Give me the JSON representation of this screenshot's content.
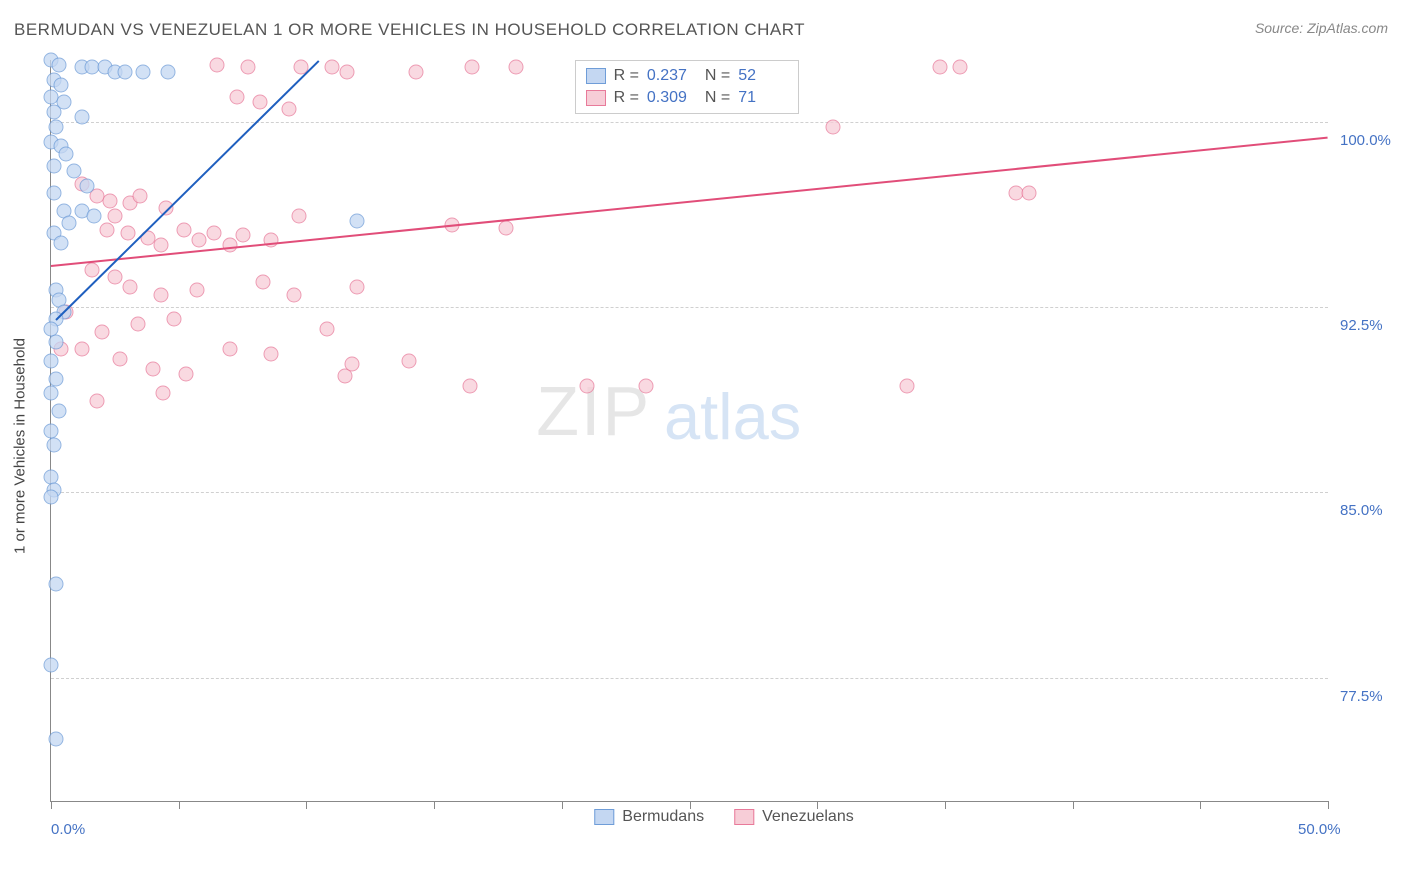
{
  "title": "BERMUDAN VS VENEZUELAN 1 OR MORE VEHICLES IN HOUSEHOLD CORRELATION CHART",
  "source": "Source: ZipAtlas.com",
  "y_axis_label": "1 or more Vehicles in Household",
  "watermark_zip": "ZIP",
  "watermark_atlas": "atlas",
  "chart": {
    "type": "scatter",
    "xlim": [
      0,
      50
    ],
    "ylim": [
      72.5,
      102.5
    ],
    "x_ticks": [
      0,
      5,
      10,
      15,
      20,
      25,
      30,
      35,
      40,
      45,
      50
    ],
    "x_tick_labels_shown": {
      "0": "0.0%",
      "50": "50.0%"
    },
    "y_gridlines": [
      77.5,
      85.0,
      92.5,
      100.0
    ],
    "y_tick_labels": {
      "77.5": "77.5%",
      "85.0": "85.0%",
      "92.5": "92.5%",
      "100.0": "100.0%"
    },
    "grid_color": "#d0d0d0",
    "axis_color": "#888888",
    "label_color": "#4472c4",
    "background_color": "#ffffff"
  },
  "series": {
    "bermudans": {
      "label": "Bermudans",
      "fill": "#c4d7f2",
      "stroke": "#6f9dd8",
      "trend_color": "#1f5fbf",
      "stats": {
        "R_label": "R =",
        "R": "0.237",
        "N_label": "N =",
        "N": "52"
      },
      "trend_line": {
        "x1": 0.2,
        "y1": 92.0,
        "x2": 10.5,
        "y2": 102.5
      },
      "points": [
        [
          0.0,
          102.5
        ],
        [
          0.3,
          102.3
        ],
        [
          1.2,
          102.2
        ],
        [
          1.6,
          102.2
        ],
        [
          2.1,
          102.2
        ],
        [
          2.5,
          102.0
        ],
        [
          2.9,
          102.0
        ],
        [
          3.6,
          102.0
        ],
        [
          4.6,
          102.0
        ],
        [
          0.1,
          101.7
        ],
        [
          0.4,
          101.5
        ],
        [
          0.0,
          101.0
        ],
        [
          0.5,
          100.8
        ],
        [
          0.1,
          100.4
        ],
        [
          1.2,
          100.2
        ],
        [
          0.2,
          99.8
        ],
        [
          0.0,
          99.2
        ],
        [
          0.4,
          99.0
        ],
        [
          0.6,
          98.7
        ],
        [
          0.1,
          98.2
        ],
        [
          0.9,
          98.0
        ],
        [
          1.4,
          97.4
        ],
        [
          0.1,
          97.1
        ],
        [
          0.5,
          96.4
        ],
        [
          1.2,
          96.4
        ],
        [
          1.7,
          96.2
        ],
        [
          0.7,
          95.9
        ],
        [
          0.1,
          95.5
        ],
        [
          0.4,
          95.1
        ],
        [
          12.0,
          96.0
        ],
        [
          0.2,
          93.2
        ],
        [
          0.3,
          92.8
        ],
        [
          0.5,
          92.3
        ],
        [
          0.2,
          92.0
        ],
        [
          0.0,
          91.6
        ],
        [
          0.2,
          91.1
        ],
        [
          0.0,
          90.3
        ],
        [
          0.2,
          89.6
        ],
        [
          0.0,
          89.0
        ],
        [
          0.3,
          88.3
        ],
        [
          0.0,
          87.5
        ],
        [
          0.1,
          86.9
        ],
        [
          0.0,
          85.6
        ],
        [
          0.1,
          85.1
        ],
        [
          0.0,
          84.8
        ],
        [
          0.2,
          81.3
        ],
        [
          0.0,
          78.0
        ],
        [
          0.2,
          75.0
        ]
      ]
    },
    "venezuelans": {
      "label": "Venezuelans",
      "fill": "#f7cdd7",
      "stroke": "#e87a9a",
      "trend_color": "#e14d79",
      "stats": {
        "R_label": "R =",
        "R": "0.309",
        "N_label": "N =",
        "N": "71"
      },
      "trend_line": {
        "x1": 0.0,
        "y1": 94.2,
        "x2": 50.0,
        "y2": 99.4
      },
      "points": [
        [
          6.5,
          102.3
        ],
        [
          7.7,
          102.2
        ],
        [
          9.8,
          102.2
        ],
        [
          11.0,
          102.2
        ],
        [
          11.6,
          102.0
        ],
        [
          14.3,
          102.0
        ],
        [
          16.5,
          102.2
        ],
        [
          18.2,
          102.2
        ],
        [
          34.8,
          102.2
        ],
        [
          35.6,
          102.2
        ],
        [
          7.3,
          101.0
        ],
        [
          8.2,
          100.8
        ],
        [
          9.3,
          100.5
        ],
        [
          30.6,
          99.8
        ],
        [
          1.2,
          97.5
        ],
        [
          1.8,
          97.0
        ],
        [
          2.3,
          96.8
        ],
        [
          2.5,
          96.2
        ],
        [
          3.1,
          96.7
        ],
        [
          3.5,
          97.0
        ],
        [
          4.5,
          96.5
        ],
        [
          37.8,
          97.1
        ],
        [
          38.3,
          97.1
        ],
        [
          2.2,
          95.6
        ],
        [
          3.0,
          95.5
        ],
        [
          3.8,
          95.3
        ],
        [
          4.3,
          95.0
        ],
        [
          5.2,
          95.6
        ],
        [
          5.8,
          95.2
        ],
        [
          6.4,
          95.5
        ],
        [
          7.0,
          95.0
        ],
        [
          7.5,
          95.4
        ],
        [
          8.6,
          95.2
        ],
        [
          9.7,
          96.2
        ],
        [
          15.7,
          95.8
        ],
        [
          17.8,
          95.7
        ],
        [
          1.6,
          94.0
        ],
        [
          2.5,
          93.7
        ],
        [
          3.1,
          93.3
        ],
        [
          4.3,
          93.0
        ],
        [
          5.7,
          93.2
        ],
        [
          8.3,
          93.5
        ],
        [
          9.5,
          93.0
        ],
        [
          12.0,
          93.3
        ],
        [
          0.6,
          92.3
        ],
        [
          2.0,
          91.5
        ],
        [
          3.4,
          91.8
        ],
        [
          4.8,
          92.0
        ],
        [
          10.8,
          91.6
        ],
        [
          0.4,
          90.8
        ],
        [
          1.2,
          90.8
        ],
        [
          2.7,
          90.4
        ],
        [
          4.0,
          90.0
        ],
        [
          5.3,
          89.8
        ],
        [
          7.0,
          90.8
        ],
        [
          8.6,
          90.6
        ],
        [
          11.5,
          89.7
        ],
        [
          11.8,
          90.2
        ],
        [
          14.0,
          90.3
        ],
        [
          16.4,
          89.3
        ],
        [
          21.0,
          89.3
        ],
        [
          23.3,
          89.3
        ],
        [
          33.5,
          89.3
        ],
        [
          1.8,
          88.7
        ],
        [
          4.4,
          89.0
        ]
      ]
    }
  }
}
